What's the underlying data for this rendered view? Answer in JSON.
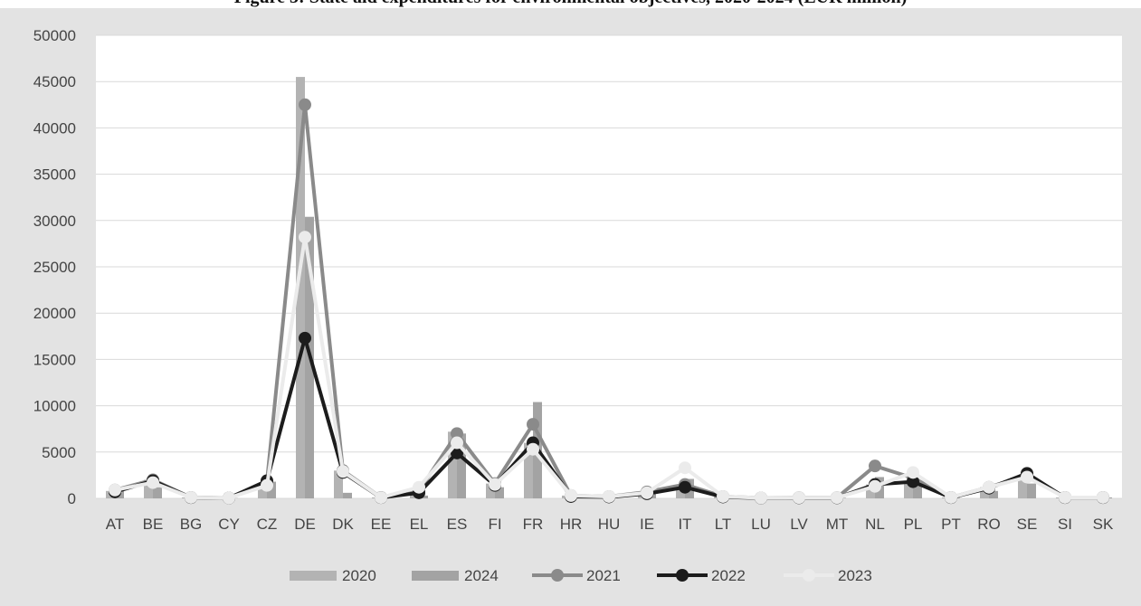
{
  "figure_title": "Figure 3: State aid expenditures for environmental objectives, 2020-2024 (EUR million)",
  "colors": {
    "background": "#e3e3e3",
    "plot": "#ffffff",
    "grid": "#d9d9d9",
    "s2020": "#b3b3b3",
    "s2024": "#a3a3a3",
    "s2021": "#8a8a8a",
    "s2022": "#1c1c1c",
    "s2023": "#ebebeb"
  },
  "chart_data": {
    "type": "bar",
    "title": "Figure 3: State aid expenditures for environmental objectives, 2020-2024 (EUR million)",
    "xlabel": "",
    "ylabel": "",
    "ylim": [
      0,
      50000
    ],
    "yticks": [
      0,
      5000,
      10000,
      15000,
      20000,
      25000,
      30000,
      35000,
      40000,
      45000,
      50000
    ],
    "grid": true,
    "legend_position": "bottom",
    "categories": [
      "AT",
      "BE",
      "BG",
      "CY",
      "CZ",
      "DE",
      "DK",
      "EE",
      "EL",
      "ES",
      "FI",
      "FR",
      "HR",
      "HU",
      "IE",
      "IT",
      "LT",
      "LU",
      "LV",
      "MT",
      "NL",
      "PL",
      "PT",
      "RO",
      "SE",
      "SI",
      "SK"
    ],
    "series": [
      {
        "name": "2020",
        "type": "bar",
        "color": "#b3b3b3",
        "values": [
          800,
          2000,
          100,
          50,
          1500,
          45500,
          3000,
          100,
          700,
          7200,
          1600,
          6000,
          300,
          200,
          700,
          1200,
          200,
          50,
          80,
          80,
          1500,
          1800,
          100,
          1200,
          2200,
          100,
          100
        ]
      },
      {
        "name": "2024",
        "type": "bar",
        "color": "#a3a3a3",
        "values": [
          1000,
          1200,
          50,
          20,
          1800,
          30400,
          600,
          50,
          300,
          7000,
          1200,
          10400,
          100,
          100,
          500,
          2100,
          150,
          30,
          60,
          60,
          2300,
          1500,
          80,
          800,
          1600,
          80,
          100
        ]
      },
      {
        "name": "2021",
        "type": "line",
        "color": "#8a8a8a",
        "values": [
          900,
          2000,
          100,
          50,
          1800,
          42500,
          3000,
          100,
          800,
          7000,
          1600,
          8000,
          300,
          200,
          700,
          1500,
          200,
          50,
          80,
          80,
          3500,
          2200,
          100,
          1200,
          2500,
          100,
          100
        ]
      },
      {
        "name": "2022",
        "type": "line",
        "color": "#1c1c1c",
        "values": [
          700,
          1900,
          80,
          40,
          1900,
          17300,
          2800,
          80,
          600,
          4900,
          1400,
          6000,
          200,
          150,
          500,
          1200,
          150,
          30,
          60,
          60,
          1500,
          1800,
          80,
          1100,
          2700,
          80,
          80
        ]
      },
      {
        "name": "2023",
        "type": "line",
        "color": "#ebebeb",
        "values": [
          900,
          1700,
          100,
          50,
          1400,
          28200,
          2900,
          90,
          1200,
          6000,
          1500,
          5300,
          300,
          200,
          600,
          3300,
          200,
          50,
          80,
          80,
          1300,
          2800,
          100,
          1200,
          2300,
          100,
          100
        ]
      }
    ]
  }
}
